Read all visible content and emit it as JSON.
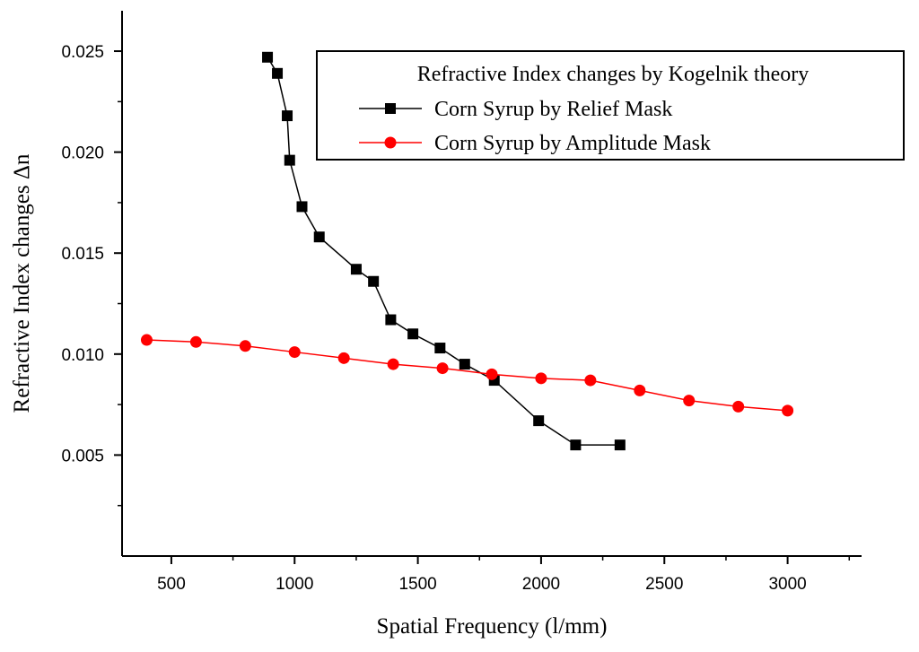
{
  "chart_data": {
    "type": "line",
    "title": "",
    "xlabel": "Spatial Frequency (l/mm)",
    "ylabel": "Refractive Index changes Δn",
    "xlim": [
      300,
      3300
    ],
    "ylim": [
      0.0,
      0.027
    ],
    "x_ticks": [
      500,
      1000,
      1500,
      2000,
      2500,
      3000
    ],
    "x_tick_labels": [
      "500",
      "1000",
      "1500",
      "2000",
      "2500",
      "3000"
    ],
    "y_ticks": [
      0.005,
      0.01,
      0.015,
      0.02,
      0.025
    ],
    "y_tick_labels": [
      "0.005",
      "0.010",
      "0.015",
      "0.020",
      "0.025"
    ],
    "grid": false,
    "legend": {
      "title": "Refractive Index changes by Kogelnik theory",
      "placement": "top-right"
    },
    "series": [
      {
        "name": "Corn Syrup by Relief Mask",
        "color": "#000000",
        "marker": "square",
        "x": [
          890,
          930,
          970,
          980,
          1030,
          1100,
          1250,
          1320,
          1390,
          1480,
          1590,
          1690,
          1810,
          1990,
          2140,
          2320
        ],
        "y": [
          0.0247,
          0.0239,
          0.0218,
          0.0196,
          0.0173,
          0.0158,
          0.0142,
          0.0136,
          0.0117,
          0.011,
          0.0103,
          0.0095,
          0.0087,
          0.0067,
          0.0055,
          0.0055
        ]
      },
      {
        "name": "Corn Syrup by Amplitude Mask",
        "color": "#ff0000",
        "marker": "circle",
        "x": [
          400,
          600,
          800,
          1000,
          1200,
          1400,
          1600,
          1800,
          2000,
          2200,
          2400,
          2600,
          2800,
          3000
        ],
        "y": [
          0.0107,
          0.0106,
          0.0104,
          0.0101,
          0.0098,
          0.0095,
          0.0093,
          0.009,
          0.0088,
          0.0087,
          0.0082,
          0.0077,
          0.0074,
          0.0072
        ]
      }
    ]
  }
}
